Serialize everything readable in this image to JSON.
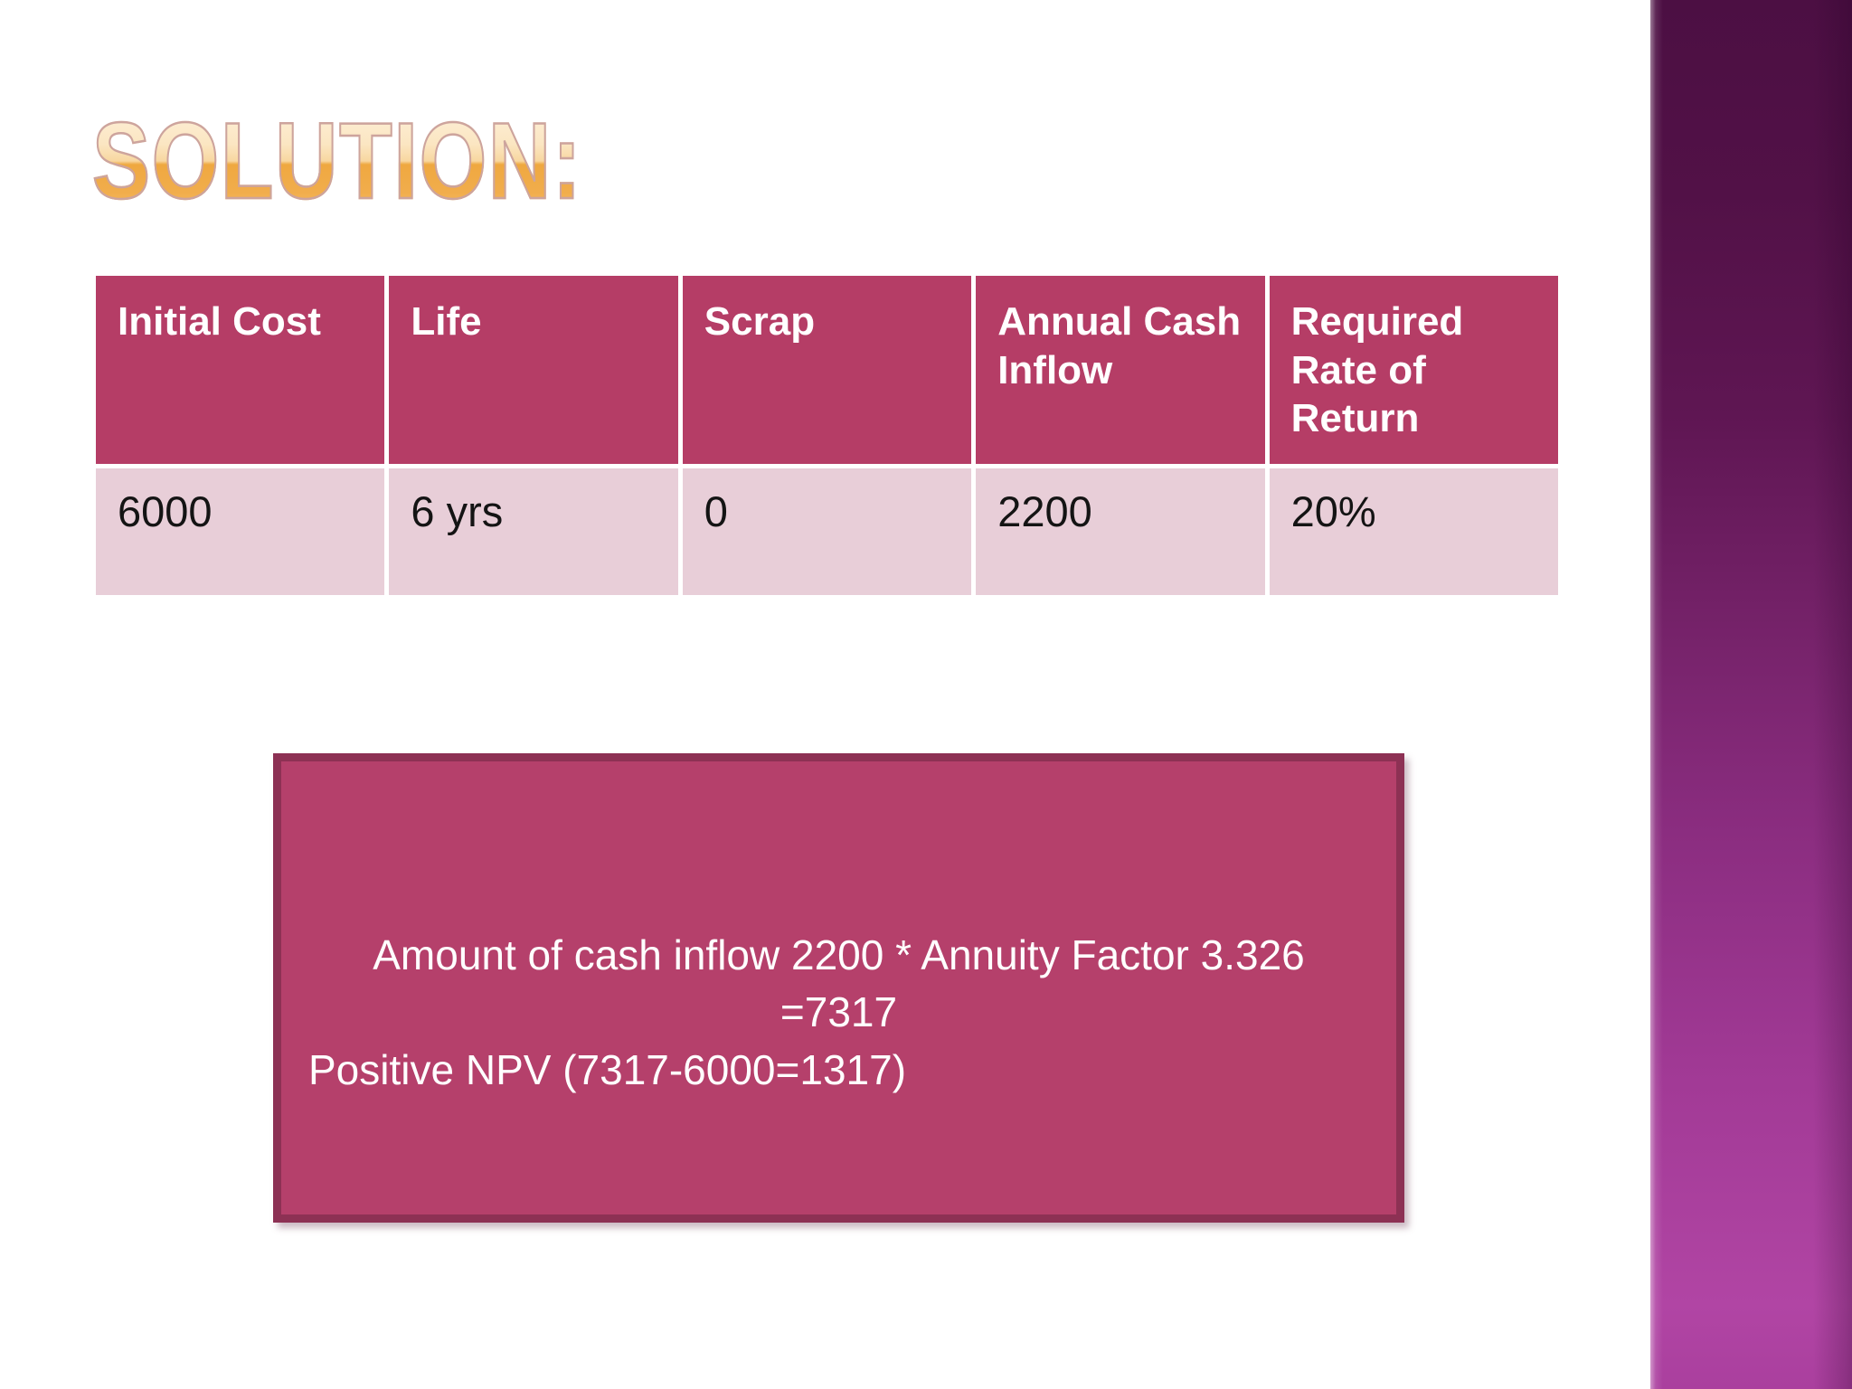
{
  "slide": {
    "title": "SOLUTION:",
    "table": {
      "headers": [
        "Initial Cost",
        "Life",
        "Scrap",
        "Annual Cash Inflow",
        "Required Rate of Return"
      ],
      "row": [
        "6000",
        "6 yrs",
        "0",
        "2200",
        "20%"
      ]
    },
    "solution_box": {
      "line1": "Amount of cash inflow 2200 * Annuity Factor 3.326",
      "line2": "=7317",
      "line3": "Positive NPV (7317-6000=1317)"
    },
    "colors": {
      "table_header_bg": "#b53d66",
      "table_row_bg": "#e8ced8",
      "box_bg": "#b5406b",
      "box_border": "#8d3154",
      "title_gradient_top": "#fdf1dc",
      "title_gradient_bottom": "#efa840",
      "sidebar_gradient_top": "#4c0f43",
      "sidebar_gradient_bottom": "#b145a4"
    }
  }
}
